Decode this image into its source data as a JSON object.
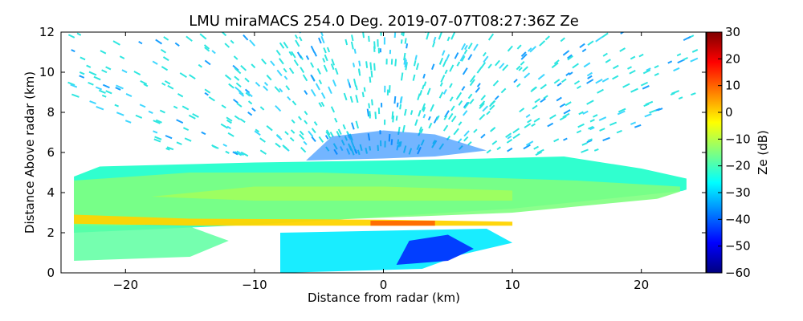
{
  "chart_data": {
    "type": "heatmap",
    "title": "LMU miraMACS 254.0 Deg. 2019-07-07T08:27:36Z  Ze",
    "xlabel": "Distance from radar (km)",
    "ylabel": "Distance Above radar  (km)",
    "xlim": [
      -25,
      25
    ],
    "ylim": [
      0,
      12
    ],
    "xticks": [
      -20,
      -10,
      0,
      10,
      20
    ],
    "xtick_labels": [
      "−20",
      "−10",
      "0",
      "10",
      "20"
    ],
    "yticks": [
      0,
      2,
      4,
      6,
      8,
      10,
      12
    ],
    "ytick_labels": [
      "0",
      "2",
      "4",
      "6",
      "8",
      "10",
      "12"
    ],
    "grid": false,
    "colorbar": {
      "label": "Ze (dB)",
      "range": [
        -60,
        30
      ],
      "ticks": [
        30,
        20,
        10,
        0,
        -10,
        -20,
        -30,
        -40,
        -50,
        -60
      ],
      "tick_labels": [
        "30",
        "20",
        "10",
        "0",
        "−10",
        "−20",
        "−30",
        "−40",
        "−50",
        "−60"
      ],
      "colormap": "jet",
      "colors": [
        "#00007f",
        "#0000ff",
        "#007fff",
        "#00ffff",
        "#7fff7f",
        "#ffff00",
        "#ff7f00",
        "#ff0000",
        "#7f0000"
      ]
    },
    "features": [
      {
        "name": "high-noise-speckle",
        "x_range": [
          -22,
          22
        ],
        "y_range": [
          6,
          12
        ],
        "ze_db": -35
      },
      {
        "name": "cloud-layer",
        "x_range": [
          -24,
          23.5
        ],
        "y_range": [
          2,
          5.5
        ],
        "ze_db": -15
      },
      {
        "name": "bright-band",
        "x_range": [
          -24,
          10
        ],
        "y_center": 2.5,
        "ze_db": 5
      },
      {
        "name": "low-echo-region",
        "x_range": [
          -6,
          8
        ],
        "y_range": [
          0,
          2.2
        ],
        "ze_db": -30
      }
    ]
  }
}
